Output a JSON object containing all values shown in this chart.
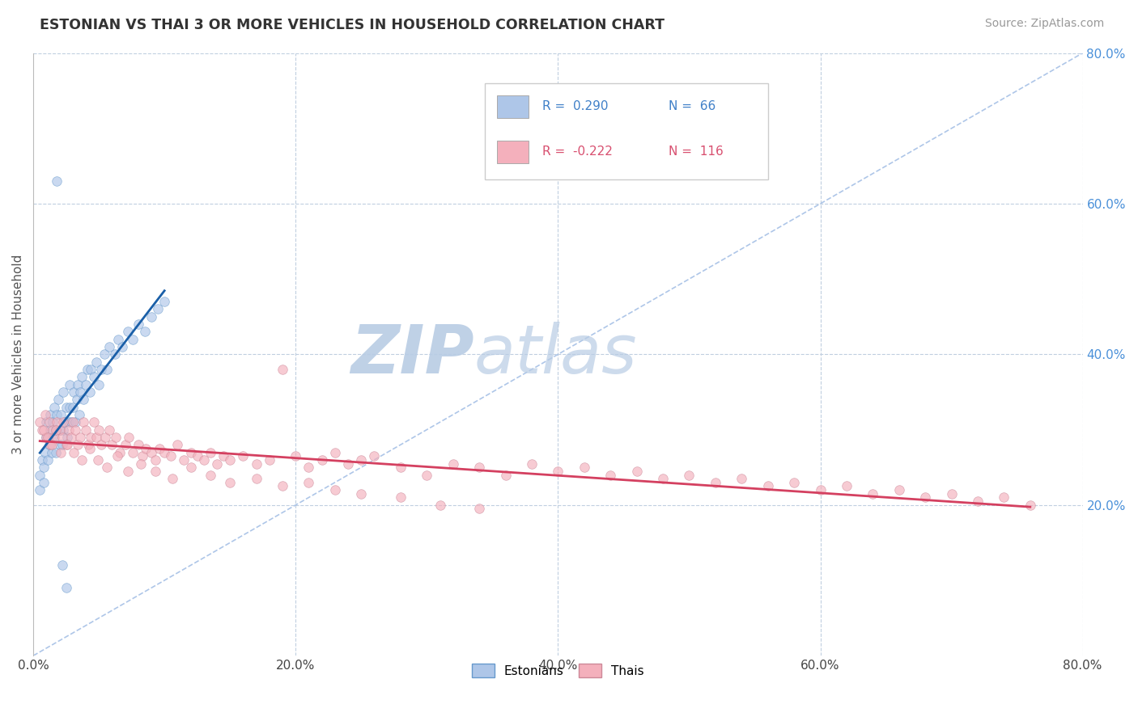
{
  "title": "ESTONIAN VS THAI 3 OR MORE VEHICLES IN HOUSEHOLD CORRELATION CHART",
  "source": "Source: ZipAtlas.com",
  "ylabel": "3 or more Vehicles in Household",
  "xlim": [
    0.0,
    0.8
  ],
  "ylim": [
    0.0,
    0.8
  ],
  "xtick_vals": [
    0.0,
    0.2,
    0.4,
    0.6,
    0.8
  ],
  "xtick_labels": [
    "0.0%",
    "20.0%",
    "40.0%",
    "60.0%",
    "80.0%"
  ],
  "ytick_right_vals": [
    0.2,
    0.4,
    0.6,
    0.8
  ],
  "ytick_right_labels": [
    "20.0%",
    "40.0%",
    "60.0%",
    "80.0%"
  ],
  "legend_R1": "0.290",
  "legend_N1": "66",
  "legend_R2": "-0.222",
  "legend_N2": "116",
  "estonian_color": "#aec6e8",
  "estonian_edge_color": "#6699cc",
  "thai_color": "#f4b0bc",
  "thai_edge_color": "#cc8898",
  "estonian_line_color": "#1a5fa8",
  "thai_line_color": "#d44060",
  "diag_color": "#aec6e8",
  "grid_color": "#c0cfe0",
  "watermark_color": "#ccd9e8",
  "background_color": "#ffffff",
  "legend_text_color1": "#4080c8",
  "legend_text_color2": "#d85070",
  "marker_size": 70,
  "alpha": 0.65,
  "est_x": [
    0.005,
    0.005,
    0.007,
    0.008,
    0.008,
    0.009,
    0.01,
    0.01,
    0.011,
    0.012,
    0.013,
    0.013,
    0.014,
    0.015,
    0.015,
    0.016,
    0.017,
    0.017,
    0.018,
    0.019,
    0.02,
    0.02,
    0.021,
    0.022,
    0.023,
    0.023,
    0.024,
    0.025,
    0.026,
    0.027,
    0.028,
    0.028,
    0.029,
    0.03,
    0.031,
    0.032,
    0.033,
    0.034,
    0.035,
    0.036,
    0.037,
    0.038,
    0.04,
    0.041,
    0.043,
    0.044,
    0.046,
    0.048,
    0.05,
    0.052,
    0.054,
    0.056,
    0.058,
    0.062,
    0.065,
    0.068,
    0.072,
    0.076,
    0.08,
    0.085,
    0.09,
    0.095,
    0.1,
    0.018,
    0.022,
    0.025
  ],
  "est_y": [
    0.22,
    0.24,
    0.26,
    0.23,
    0.25,
    0.27,
    0.29,
    0.31,
    0.26,
    0.28,
    0.3,
    0.32,
    0.27,
    0.29,
    0.31,
    0.33,
    0.27,
    0.3,
    0.32,
    0.34,
    0.28,
    0.3,
    0.32,
    0.28,
    0.3,
    0.35,
    0.31,
    0.33,
    0.29,
    0.31,
    0.33,
    0.36,
    0.31,
    0.33,
    0.35,
    0.31,
    0.34,
    0.36,
    0.32,
    0.35,
    0.37,
    0.34,
    0.36,
    0.38,
    0.35,
    0.38,
    0.37,
    0.39,
    0.36,
    0.38,
    0.4,
    0.38,
    0.41,
    0.4,
    0.42,
    0.41,
    0.43,
    0.42,
    0.44,
    0.43,
    0.45,
    0.46,
    0.47,
    0.63,
    0.12,
    0.09
  ],
  "thai_x": [
    0.005,
    0.007,
    0.009,
    0.01,
    0.012,
    0.013,
    0.015,
    0.016,
    0.018,
    0.02,
    0.022,
    0.023,
    0.025,
    0.027,
    0.029,
    0.03,
    0.032,
    0.034,
    0.036,
    0.038,
    0.04,
    0.042,
    0.044,
    0.046,
    0.048,
    0.05,
    0.052,
    0.055,
    0.058,
    0.06,
    0.063,
    0.066,
    0.07,
    0.073,
    0.076,
    0.08,
    0.083,
    0.086,
    0.09,
    0.093,
    0.096,
    0.1,
    0.105,
    0.11,
    0.115,
    0.12,
    0.125,
    0.13,
    0.135,
    0.14,
    0.145,
    0.15,
    0.16,
    0.17,
    0.18,
    0.19,
    0.2,
    0.21,
    0.22,
    0.23,
    0.24,
    0.25,
    0.26,
    0.28,
    0.3,
    0.32,
    0.34,
    0.36,
    0.38,
    0.4,
    0.42,
    0.44,
    0.46,
    0.48,
    0.5,
    0.52,
    0.54,
    0.56,
    0.58,
    0.6,
    0.62,
    0.64,
    0.66,
    0.68,
    0.7,
    0.72,
    0.74,
    0.76,
    0.008,
    0.011,
    0.014,
    0.017,
    0.021,
    0.026,
    0.031,
    0.037,
    0.043,
    0.049,
    0.056,
    0.064,
    0.072,
    0.082,
    0.093,
    0.106,
    0.12,
    0.135,
    0.15,
    0.17,
    0.19,
    0.21,
    0.23,
    0.25,
    0.28,
    0.31,
    0.34
  ],
  "thai_y": [
    0.31,
    0.3,
    0.32,
    0.29,
    0.31,
    0.28,
    0.3,
    0.29,
    0.31,
    0.3,
    0.29,
    0.31,
    0.28,
    0.3,
    0.29,
    0.31,
    0.3,
    0.28,
    0.29,
    0.31,
    0.3,
    0.28,
    0.29,
    0.31,
    0.29,
    0.3,
    0.28,
    0.29,
    0.3,
    0.28,
    0.29,
    0.27,
    0.28,
    0.29,
    0.27,
    0.28,
    0.265,
    0.275,
    0.27,
    0.26,
    0.275,
    0.27,
    0.265,
    0.28,
    0.26,
    0.27,
    0.265,
    0.26,
    0.27,
    0.255,
    0.265,
    0.26,
    0.265,
    0.255,
    0.26,
    0.38,
    0.265,
    0.25,
    0.26,
    0.27,
    0.255,
    0.26,
    0.265,
    0.25,
    0.24,
    0.255,
    0.25,
    0.24,
    0.255,
    0.245,
    0.25,
    0.24,
    0.245,
    0.235,
    0.24,
    0.23,
    0.235,
    0.225,
    0.23,
    0.22,
    0.225,
    0.215,
    0.22,
    0.21,
    0.215,
    0.205,
    0.21,
    0.2,
    0.3,
    0.29,
    0.28,
    0.3,
    0.27,
    0.28,
    0.27,
    0.26,
    0.275,
    0.26,
    0.25,
    0.265,
    0.245,
    0.255,
    0.245,
    0.235,
    0.25,
    0.24,
    0.23,
    0.235,
    0.225,
    0.23,
    0.22,
    0.215,
    0.21,
    0.2,
    0.195
  ]
}
